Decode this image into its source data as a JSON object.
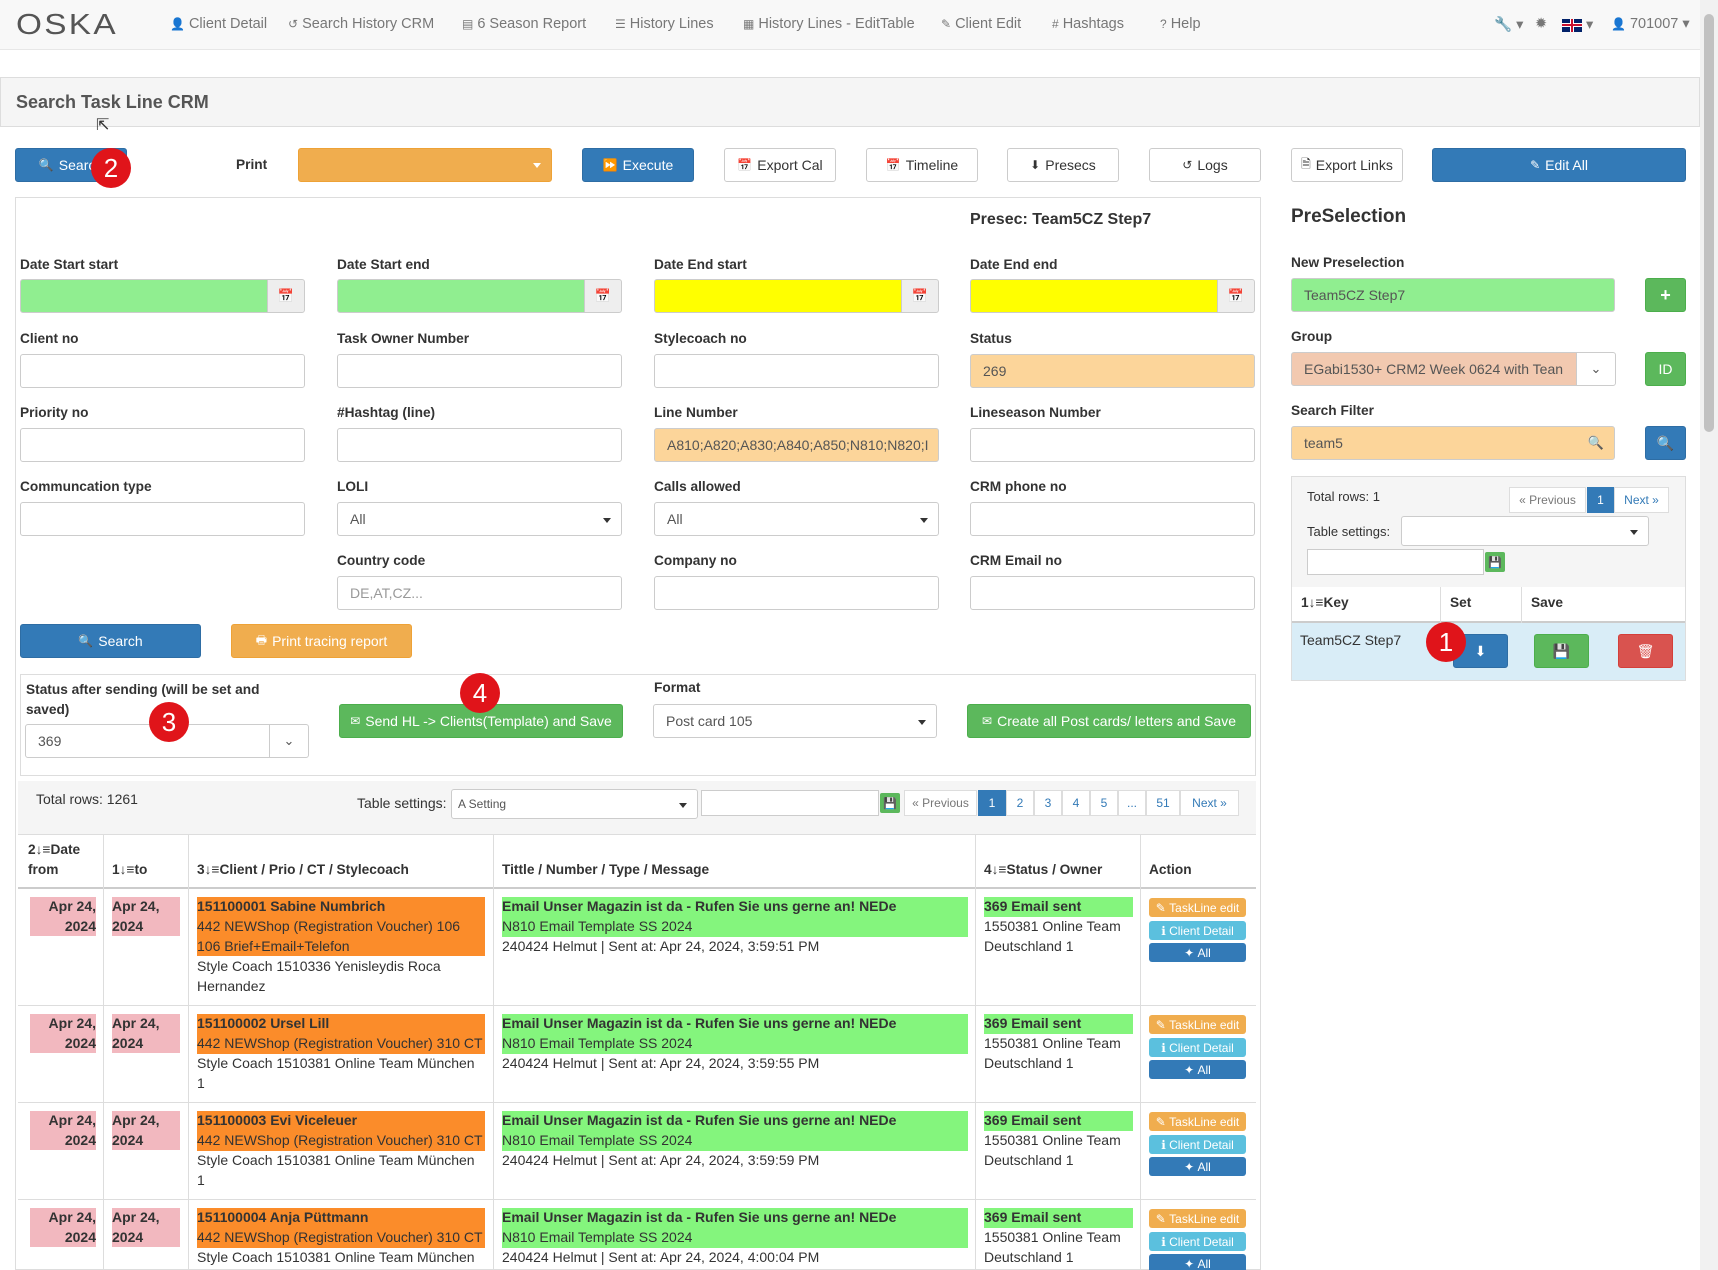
{
  "navbar": {
    "brand": "OSKA",
    "links": [
      {
        "label": "Client Detail",
        "icon": "user-icon"
      },
      {
        "label": "Search History CRM",
        "icon": "history-icon"
      },
      {
        "label": "6 Season Report",
        "icon": "list-alt-icon"
      },
      {
        "label": "History Lines",
        "icon": "list-icon"
      },
      {
        "label": "History Lines - EditTable",
        "icon": "table-icon"
      },
      {
        "label": "Client Edit",
        "icon": "edit-icon"
      },
      {
        "label": "Hashtags",
        "icon": "hash-icon"
      },
      {
        "label": "Help",
        "icon": "question-icon"
      }
    ],
    "user": "701007"
  },
  "page_title": "Search Task Line CRM",
  "toolbar": {
    "search": "Search",
    "print_label": "Print",
    "execute": "Execute",
    "export_cal": "Export Cal",
    "timeline": "Timeline",
    "presecs": "Presecs",
    "logs": "Logs",
    "export_links": "Export Links",
    "edit_all": "Edit All"
  },
  "presec_title": "Presec: Team5CZ Step7",
  "form": {
    "date_start_start": "Date Start start",
    "date_start_end": "Date Start end",
    "date_end_start": "Date End start",
    "date_end_end": "Date End end",
    "client_no": "Client no",
    "task_owner_number": "Task Owner Number",
    "stylecoach_no": "Stylecoach no",
    "status": "Status",
    "status_value": "269",
    "priority_no": "Priority no",
    "hashtag_line": "#Hashtag (line)",
    "line_number": "Line Number",
    "line_number_value": "A810;A820;A830;A840;A850;N810;N820;I",
    "lineseason_number": "Lineseason Number",
    "communication_type": "Communcation type",
    "loli": "LOLI",
    "loli_value": "All",
    "calls_allowed": "Calls allowed",
    "calls_allowed_value": "All",
    "crm_phone_no": "CRM phone no",
    "country_code": "Country code",
    "country_code_placeholder": "DE,AT,CZ...",
    "company_no": "Company no",
    "crm_email_no": "CRM Email no",
    "search_button": "Search",
    "print_tracing_report": "Print tracing report"
  },
  "send": {
    "status_after_label": "Status after sending (will be set and saved)",
    "status_after_value": "369",
    "send_button": "Send HL -> Clients(Template) and Save",
    "format_label": "Format",
    "format_value": "Post card 105",
    "create_button": "Create all Post cards/ letters and Save"
  },
  "main_table": {
    "total_rows": "Total rows: 1261",
    "settings_label": "Table settings:",
    "settings_value": "A Setting",
    "pagination": [
      "« Previous",
      "1",
      "2",
      "3",
      "4",
      "5",
      "...",
      "51",
      "Next »"
    ],
    "headers": {
      "date_from": "2↓≡Date from",
      "to": "1↓≡to",
      "client": "3↓≡Client / Prio / CT / Stylecoach",
      "title": "Tittle / Number / Type / Message",
      "status": "4↓≡Status / Owner",
      "action": "Action"
    },
    "rows": [
      {
        "date_from": "Apr 24, 2024",
        "to": "Apr 24, 2024",
        "client_name": "151100001 Sabine Numbrich",
        "client_prio": "442 NEWShop (Registration Voucher) 106 106 Brief+Email+Telefon",
        "stylecoach": "Style Coach 1510336 Yenisleydis Roca Hernandez",
        "title": "Email Unser Magazin ist da - Rufen Sie uns gerne an! NEDe",
        "template": "N810 Email Template SS 2024",
        "sent": "240424 Helmut | Sent at: Apr 24, 2024, 3:59:51 PM",
        "status": "369 Email sent",
        "owner": "1550381 Online Team Deutschland 1"
      },
      {
        "date_from": "Apr 24, 2024",
        "to": "Apr 24, 2024",
        "client_name": "151100002 Ursel Lill",
        "client_prio": "442 NEWShop (Registration Voucher) 310 CT",
        "stylecoach": "Style Coach 1510381 Online Team München 1",
        "title": "Email Unser Magazin ist da - Rufen Sie uns gerne an! NEDe",
        "template": "N810 Email Template SS 2024",
        "sent": "240424 Helmut | Sent at: Apr 24, 2024, 3:59:55 PM",
        "status": "369 Email sent",
        "owner": "1550381 Online Team Deutschland 1"
      },
      {
        "date_from": "Apr 24, 2024",
        "to": "Apr 24, 2024",
        "client_name": "151100003 Evi Viceleuer",
        "client_prio": "442 NEWShop (Registration Voucher) 310 CT",
        "stylecoach": "Style Coach 1510381 Online Team München 1",
        "title": "Email Unser Magazin ist da - Rufen Sie uns gerne an! NEDe",
        "template": "N810 Email Template SS 2024",
        "sent": "240424 Helmut | Sent at: Apr 24, 2024, 3:59:59 PM",
        "status": "369 Email sent",
        "owner": "1550381 Online Team Deutschland 1"
      },
      {
        "date_from": "Apr 24, 2024",
        "to": "Apr 24, 2024",
        "client_name": "151100004 Anja Püttmann",
        "client_prio": "442 NEWShop (Registration Voucher) 310 CT",
        "stylecoach": "Style Coach 1510381 Online Team München",
        "title": "Email Unser Magazin ist da - Rufen Sie uns gerne an! NEDe",
        "template": "N810 Email Template SS 2024",
        "sent": "240424 Helmut | Sent at: Apr 24, 2024, 4:00:04 PM",
        "status": "369 Email sent",
        "owner": "1550381 Online Team Deutschland 1"
      }
    ],
    "action_labels": {
      "taskline_edit": "TaskLine edit",
      "client_detail": "Client Detail",
      "all": "All"
    }
  },
  "preselection": {
    "title": "PreSelection",
    "new_label": "New Preselection",
    "new_value": "Team5CZ Step7",
    "group_label": "Group",
    "group_value": "EGabi1530+ CRM2 Week 0624 with Tean",
    "id_button": "ID",
    "search_filter_label": "Search Filter",
    "search_filter_value": "team5",
    "total_rows": "Total rows: 1",
    "pagination": [
      "« Previous",
      "1",
      "Next »"
    ],
    "settings_label": "Table settings:",
    "headers": {
      "key": "1↓≡Key",
      "set": "Set",
      "save": "Save"
    },
    "rows": [
      {
        "key": "Team5CZ Step7"
      }
    ]
  },
  "annotations": [
    "1",
    "2",
    "3",
    "4"
  ],
  "colors": {
    "primary": "#337ab7",
    "warning": "#f0ad4e",
    "success": "#5cb85c",
    "danger": "#d9534f",
    "info": "#5bc0de",
    "light_green": "#90ee90",
    "yellow": "#ffff00",
    "peach": "#fcd59a",
    "row_orange": "#fb8c2a",
    "row_green": "#84f57d",
    "row_pink": "#f2b8bf",
    "annotation_red": "#e0141a"
  }
}
